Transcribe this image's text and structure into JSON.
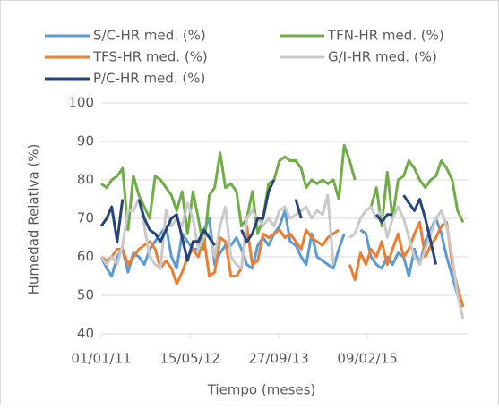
{
  "chart_data": {
    "type": "line",
    "y_label": "Humedad Relativa (%)",
    "x_label": "Tiempo (meses)",
    "legend": "top",
    "grid": true,
    "ylim": [
      40,
      100
    ],
    "yticks": [
      40,
      50,
      60,
      70,
      80,
      90,
      100
    ],
    "xlim": [
      "2011-01-01",
      "2016-09-01"
    ],
    "xticks": [
      {
        "value": "2011-01-01",
        "label": "01/01/11"
      },
      {
        "value": "2012-05-15",
        "label": "15/05/12"
      },
      {
        "value": "2013-09-27",
        "label": "27/09/13"
      },
      {
        "value": "2015-02-09",
        "label": "09/02/15"
      }
    ],
    "x": [
      "2011-01",
      "2011-02",
      "2011-03",
      "2011-04",
      "2011-05",
      "2011-06",
      "2011-07",
      "2011-08",
      "2011-09",
      "2011-10",
      "2011-11",
      "2011-12",
      "2012-01",
      "2012-02",
      "2012-03",
      "2012-04",
      "2012-05",
      "2012-06",
      "2012-07",
      "2012-08",
      "2012-09",
      "2012-10",
      "2012-11",
      "2012-12",
      "2013-01",
      "2013-02",
      "2013-03",
      "2013-04",
      "2013-05",
      "2013-06",
      "2013-07",
      "2013-08",
      "2013-09",
      "2013-10",
      "2013-11",
      "2013-12",
      "2014-01",
      "2014-02",
      "2014-03",
      "2014-04",
      "2014-05",
      "2014-06",
      "2014-07",
      "2014-08",
      "2014-09",
      "2014-10",
      "2014-11",
      "2014-12",
      "2015-01",
      "2015-02",
      "2015-03",
      "2015-04",
      "2015-05",
      "2015-06",
      "2015-07",
      "2015-08",
      "2015-09",
      "2015-10",
      "2015-11",
      "2015-12",
      "2016-01",
      "2016-02",
      "2016-03",
      "2016-04",
      "2016-05",
      "2016-06",
      "2016-07",
      "2016-08"
    ],
    "series": [
      {
        "name": "S/C-HR med. (%)",
        "color": "#5b9bd5",
        "values": [
          60,
          57,
          55,
          60,
          62,
          56,
          61,
          60,
          58,
          62,
          64,
          66,
          68,
          60,
          57,
          66,
          64,
          62,
          62,
          67,
          70,
          58,
          61,
          63,
          63,
          65,
          62,
          58,
          57,
          63,
          65,
          63,
          66,
          68,
          72,
          64,
          63,
          60,
          58,
          66,
          60,
          59,
          58,
          57,
          62,
          66,
          null,
          null,
          67,
          66,
          60,
          58,
          57,
          60,
          58,
          61,
          60,
          55,
          62,
          58,
          64,
          67,
          70,
          66,
          60,
          55,
          50,
          48
        ]
      },
      {
        "name": "TFN-HR med. (%)",
        "color": "#70ad47",
        "values": [
          79,
          78,
          80,
          81,
          83,
          67,
          81,
          76,
          73,
          70,
          81,
          80,
          78,
          76,
          72,
          77,
          66,
          77,
          70,
          62,
          76,
          78,
          87,
          78,
          79,
          77,
          68,
          70,
          77,
          66,
          70,
          79,
          80,
          85,
          86,
          85,
          85,
          83,
          78,
          80,
          79,
          80,
          79,
          80,
          75,
          89,
          85,
          80,
          null,
          null,
          73,
          78,
          68,
          82,
          70,
          80,
          81,
          85,
          83,
          80,
          78,
          80,
          81,
          85,
          83,
          80,
          72,
          69
        ]
      },
      {
        "name": "TFS-HR med. (%)",
        "color": "#ed7d31",
        "values": [
          60,
          59,
          60,
          62,
          62,
          58,
          60,
          62,
          63,
          64,
          62,
          57,
          59,
          57,
          53,
          56,
          60,
          62,
          60,
          65,
          55,
          56,
          65,
          64,
          55,
          55,
          57,
          68,
          58,
          59,
          66,
          65,
          66,
          67,
          65,
          66,
          64,
          62,
          67,
          65,
          64,
          63,
          65,
          66,
          67,
          null,
          58,
          54,
          61,
          58,
          62,
          60,
          64,
          58,
          62,
          66,
          60,
          62,
          66,
          69,
          60,
          63,
          65,
          68,
          69,
          58,
          52,
          47
        ]
      },
      {
        "name": "G/I-HR med. (%)",
        "color": "#c9c9c9",
        "values": [
          60,
          58,
          60,
          58,
          63,
          72,
          72,
          75,
          68,
          60,
          58,
          57,
          72,
          68,
          70,
          68,
          74,
          70,
          62,
          65,
          66,
          60,
          68,
          73,
          60,
          58,
          57,
          70,
          72,
          70,
          68,
          70,
          68,
          72,
          73,
          70,
          71,
          72,
          73,
          70,
          72,
          71,
          76,
          58,
          null,
          null,
          65,
          66,
          70,
          72,
          73,
          70,
          72,
          65,
          70,
          73,
          70,
          65,
          60,
          58,
          62,
          66,
          70,
          72,
          68,
          60,
          50,
          44
        ]
      },
      {
        "name": "P/C-HR med. (%)",
        "color": "#264478",
        "values": [
          68,
          70,
          73,
          64,
          75,
          null,
          null,
          75,
          70,
          67,
          66,
          64,
          67,
          70,
          71,
          65,
          59,
          64,
          64,
          67,
          65,
          63,
          null,
          null,
          null,
          null,
          67,
          64,
          66,
          70,
          70,
          77,
          80,
          null,
          null,
          null,
          75,
          70,
          null,
          null,
          null,
          null,
          null,
          null,
          null,
          null,
          null,
          null,
          null,
          null,
          null,
          71,
          69,
          71,
          71,
          null,
          76,
          74,
          72,
          75,
          70,
          64,
          58,
          null,
          null,
          null,
          null,
          null
        ]
      }
    ]
  }
}
